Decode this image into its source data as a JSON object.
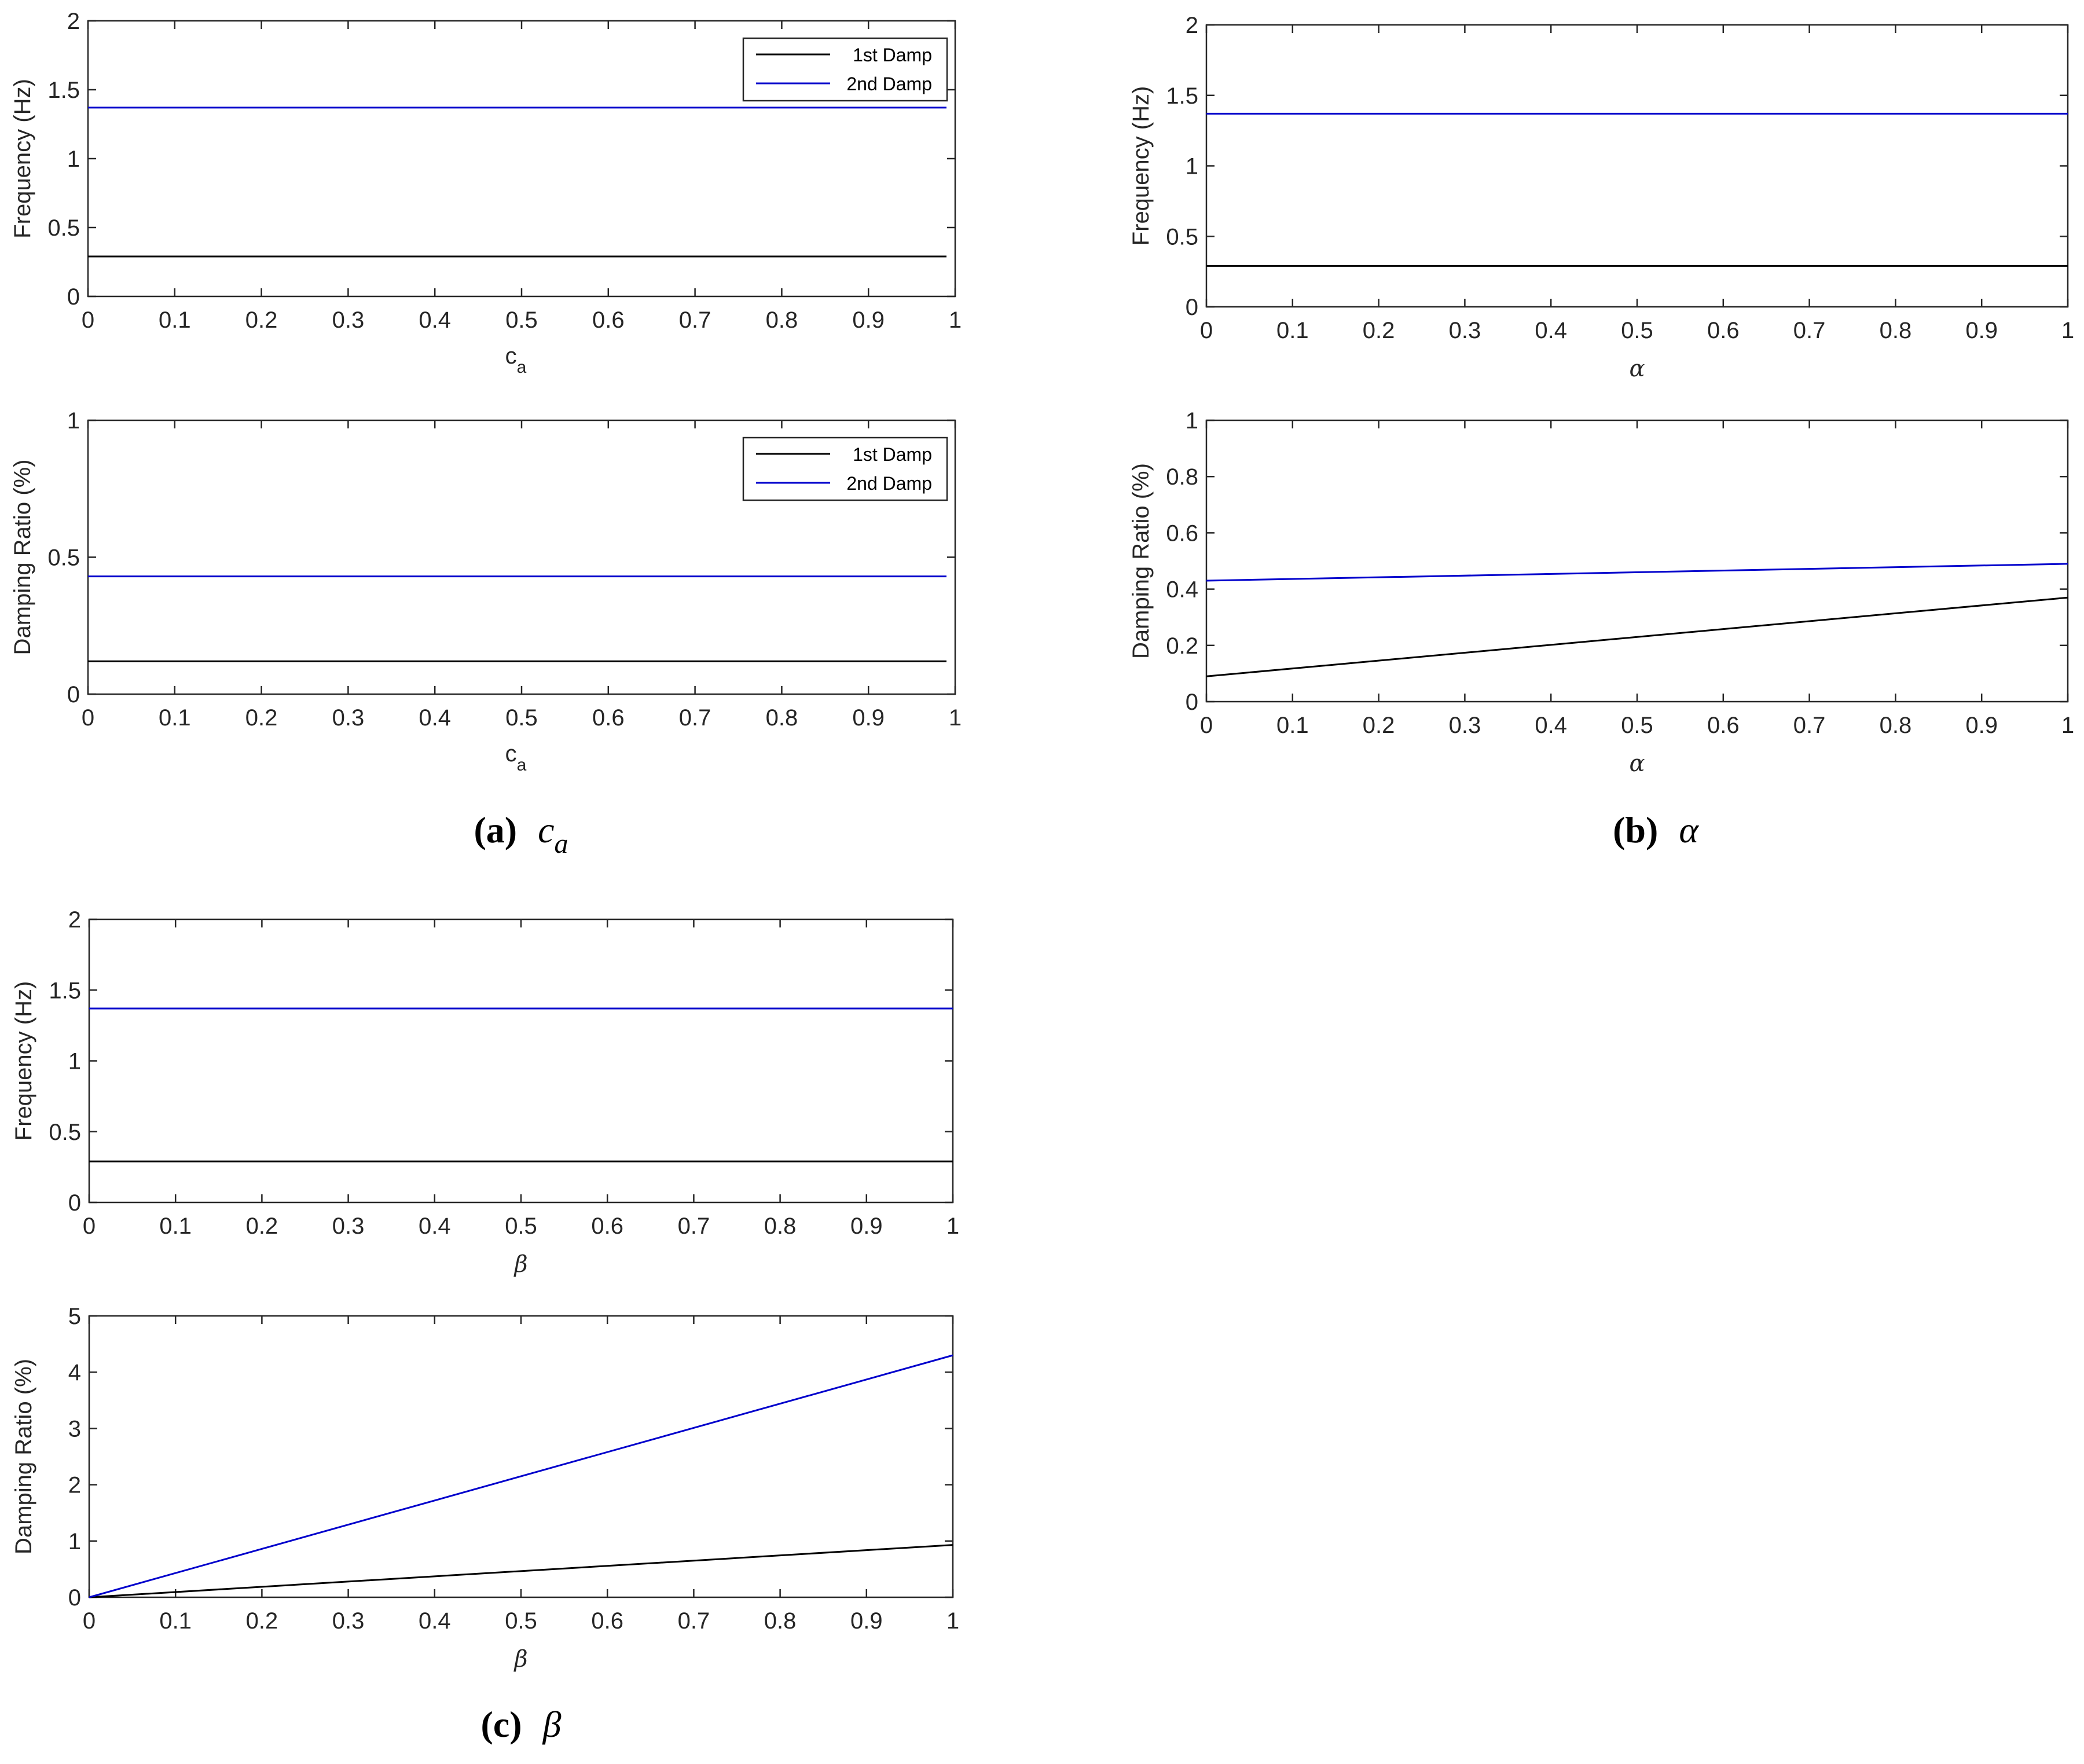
{
  "colors": {
    "series1": "#000000",
    "series2": "#0000cc",
    "axis": "#262626"
  },
  "panels": [
    {
      "caption": {
        "letter": "(a)",
        "symbol": "c",
        "sub": "a"
      },
      "charts": [
        {
          "type": "line",
          "ylabel": "Frequency (Hz)",
          "xlabel": {
            "main": "c",
            "sub": "a",
            "style": "text"
          },
          "xlim": [
            0,
            1
          ],
          "ylim": [
            0,
            2
          ],
          "xticks": [
            "0",
            "0.1",
            "0.2",
            "0.3",
            "0.4",
            "0.5",
            "0.6",
            "0.7",
            "0.8",
            "0.9",
            "1"
          ],
          "yticks": [
            "0",
            "0.5",
            "1",
            "1.5",
            "2"
          ],
          "ytick_values": [
            0,
            0.5,
            1,
            1.5,
            2
          ],
          "xmax_data": 0.99,
          "legend": [
            "1st Damp",
            "2nd Damp"
          ],
          "series": [
            {
              "name": "1st Damp",
              "color": "#000000",
              "x": [
                0,
                0.99
              ],
              "y": [
                0.29,
                0.29
              ]
            },
            {
              "name": "2nd Damp",
              "color": "#0000cc",
              "x": [
                0,
                0.99
              ],
              "y": [
                1.37,
                1.37
              ]
            }
          ]
        },
        {
          "type": "line",
          "ylabel": "Damping Ratio (%)",
          "xlabel": {
            "main": "c",
            "sub": "a",
            "style": "text"
          },
          "xlim": [
            0,
            1
          ],
          "ylim": [
            0,
            1
          ],
          "xticks": [
            "0",
            "0.1",
            "0.2",
            "0.3",
            "0.4",
            "0.5",
            "0.6",
            "0.7",
            "0.8",
            "0.9",
            "1"
          ],
          "yticks": [
            "0",
            "0.5",
            "1"
          ],
          "ytick_values": [
            0,
            0.5,
            1
          ],
          "xmax_data": 0.99,
          "legend": [
            "1st Damp",
            "2nd Damp"
          ],
          "series": [
            {
              "name": "1st Damp",
              "color": "#000000",
              "x": [
                0,
                0.99
              ],
              "y": [
                0.12,
                0.12
              ]
            },
            {
              "name": "2nd Damp",
              "color": "#0000cc",
              "x": [
                0,
                0.99
              ],
              "y": [
                0.43,
                0.43
              ]
            }
          ]
        }
      ]
    },
    {
      "caption": {
        "letter": "(b)",
        "symbol": "α",
        "sub": ""
      },
      "charts": [
        {
          "type": "line",
          "ylabel": "Frequency (Hz)",
          "xlabel": {
            "main": "α",
            "sub": "",
            "style": "greek"
          },
          "xlim": [
            0,
            1
          ],
          "ylim": [
            0,
            2
          ],
          "xticks": [
            "0",
            "0.1",
            "0.2",
            "0.3",
            "0.4",
            "0.5",
            "0.6",
            "0.7",
            "0.8",
            "0.9",
            "1"
          ],
          "yticks": [
            "0",
            "0.5",
            "1",
            "1.5",
            "2"
          ],
          "ytick_values": [
            0,
            0.5,
            1,
            1.5,
            2
          ],
          "xmax_data": 1,
          "legend": [],
          "series": [
            {
              "color": "#000000",
              "x": [
                0,
                1
              ],
              "y": [
                0.29,
                0.29
              ]
            },
            {
              "color": "#0000cc",
              "x": [
                0,
                1
              ],
              "y": [
                1.37,
                1.37
              ]
            }
          ]
        },
        {
          "type": "line",
          "ylabel": "Damping Ratio (%)",
          "xlabel": {
            "main": "α",
            "sub": "",
            "style": "greek"
          },
          "xlim": [
            0,
            1
          ],
          "ylim": [
            0,
            1
          ],
          "xticks": [
            "0",
            "0.1",
            "0.2",
            "0.3",
            "0.4",
            "0.5",
            "0.6",
            "0.7",
            "0.8",
            "0.9",
            "1"
          ],
          "yticks": [
            "0",
            "0.2",
            "0.4",
            "0.6",
            "0.8",
            "1"
          ],
          "ytick_values": [
            0,
            0.2,
            0.4,
            0.6,
            0.8,
            1
          ],
          "xmax_data": 1,
          "legend": [],
          "series": [
            {
              "color": "#000000",
              "x": [
                0,
                1
              ],
              "y": [
                0.09,
                0.37
              ]
            },
            {
              "color": "#0000cc",
              "x": [
                0,
                1
              ],
              "y": [
                0.43,
                0.49
              ]
            }
          ]
        }
      ]
    },
    {
      "caption": {
        "letter": "(c)",
        "symbol": "β",
        "sub": ""
      },
      "charts": [
        {
          "type": "line",
          "ylabel": "Frequency (Hz)",
          "xlabel": {
            "main": "β",
            "sub": "",
            "style": "greek"
          },
          "xlim": [
            0,
            1
          ],
          "ylim": [
            0,
            2
          ],
          "xticks": [
            "0",
            "0.1",
            "0.2",
            "0.3",
            "0.4",
            "0.5",
            "0.6",
            "0.7",
            "0.8",
            "0.9",
            "1"
          ],
          "yticks": [
            "0",
            "0.5",
            "1",
            "1.5",
            "2"
          ],
          "ytick_values": [
            0,
            0.5,
            1,
            1.5,
            2
          ],
          "xmax_data": 1,
          "legend": [],
          "series": [
            {
              "color": "#000000",
              "x": [
                0,
                1
              ],
              "y": [
                0.29,
                0.29
              ]
            },
            {
              "color": "#0000cc",
              "x": [
                0,
                1
              ],
              "y": [
                1.37,
                1.37
              ]
            }
          ]
        },
        {
          "type": "line",
          "ylabel": "Damping Ratio (%)",
          "xlabel": {
            "main": "β",
            "sub": "",
            "style": "greek"
          },
          "xlim": [
            0,
            1
          ],
          "ylim": [
            0,
            5
          ],
          "xticks": [
            "0",
            "0.1",
            "0.2",
            "0.3",
            "0.4",
            "0.5",
            "0.6",
            "0.7",
            "0.8",
            "0.9",
            "1"
          ],
          "yticks": [
            "0",
            "1",
            "2",
            "3",
            "4",
            "5"
          ],
          "ytick_values": [
            0,
            1,
            2,
            3,
            4,
            5
          ],
          "xmax_data": 1,
          "legend": [],
          "series": [
            {
              "color": "#000000",
              "x": [
                0,
                1
              ],
              "y": [
                0,
                0.93
              ]
            },
            {
              "color": "#0000cc",
              "x": [
                0,
                1
              ],
              "y": [
                0,
                4.3
              ]
            }
          ]
        }
      ]
    }
  ],
  "chart_data": [
    {
      "type": "line",
      "ylabel": "Frequency (Hz)",
      "xlabel": "ca",
      "xlim": [
        0,
        1
      ],
      "ylim": [
        0,
        2
      ],
      "grid": false,
      "legend_position": "top-right",
      "series": [
        {
          "name": "1st Damp",
          "x": [
            0,
            0.99
          ],
          "y": [
            0.29,
            0.29
          ]
        },
        {
          "name": "2nd Damp",
          "x": [
            0,
            0.99
          ],
          "y": [
            1.37,
            1.37
          ]
        }
      ]
    },
    {
      "type": "line",
      "ylabel": "Damping Ratio (%)",
      "xlabel": "ca",
      "xlim": [
        0,
        1
      ],
      "ylim": [
        0,
        1
      ],
      "grid": false,
      "legend_position": "top-right",
      "series": [
        {
          "name": "1st Damp",
          "x": [
            0,
            0.99
          ],
          "y": [
            0.12,
            0.12
          ]
        },
        {
          "name": "2nd Damp",
          "x": [
            0,
            0.99
          ],
          "y": [
            0.43,
            0.43
          ]
        }
      ]
    },
    {
      "type": "line",
      "ylabel": "Frequency (Hz)",
      "xlabel": "α",
      "xlim": [
        0,
        1
      ],
      "ylim": [
        0,
        2
      ],
      "grid": false,
      "series": [
        {
          "x": [
            0,
            1
          ],
          "y": [
            0.29,
            0.29
          ]
        },
        {
          "x": [
            0,
            1
          ],
          "y": [
            1.37,
            1.37
          ]
        }
      ]
    },
    {
      "type": "line",
      "ylabel": "Damping Ratio (%)",
      "xlabel": "α",
      "xlim": [
        0,
        1
      ],
      "ylim": [
        0,
        1
      ],
      "grid": false,
      "series": [
        {
          "x": [
            0,
            1
          ],
          "y": [
            0.09,
            0.37
          ]
        },
        {
          "x": [
            0,
            1
          ],
          "y": [
            0.43,
            0.49
          ]
        }
      ]
    },
    {
      "type": "line",
      "ylabel": "Frequency (Hz)",
      "xlabel": "β",
      "xlim": [
        0,
        1
      ],
      "ylim": [
        0,
        2
      ],
      "grid": false,
      "series": [
        {
          "x": [
            0,
            1
          ],
          "y": [
            0.29,
            0.29
          ]
        },
        {
          "x": [
            0,
            1
          ],
          "y": [
            1.37,
            1.37
          ]
        }
      ]
    },
    {
      "type": "line",
      "ylabel": "Damping Ratio (%)",
      "xlabel": "β",
      "xlim": [
        0,
        1
      ],
      "ylim": [
        0,
        5
      ],
      "grid": false,
      "series": [
        {
          "x": [
            0,
            1
          ],
          "y": [
            0,
            0.93
          ]
        },
        {
          "x": [
            0,
            1
          ],
          "y": [
            0,
            4.3
          ]
        }
      ]
    }
  ]
}
